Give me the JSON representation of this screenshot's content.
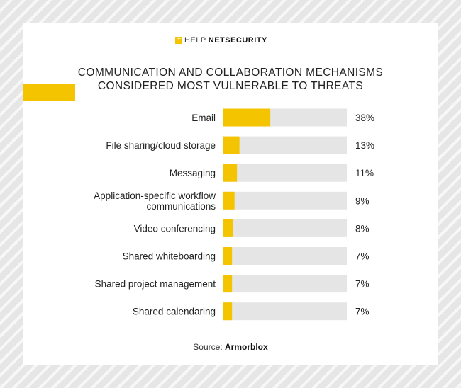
{
  "brand": {
    "help": "HELP",
    "net_security": "NETSECURITY"
  },
  "colors": {
    "bar": "#f5c400",
    "track": "#e5e5e5",
    "accent": "#f5c400"
  },
  "source": {
    "prefix": "Source:",
    "name": "Armorblox"
  },
  "chart_data": {
    "type": "bar",
    "orientation": "horizontal",
    "title_lines": [
      "COMMUNICATION AND COLLABORATION MECHANISMS",
      "CONSIDERED MOST VULNERABLE TO THREATS"
    ],
    "categories": [
      [
        "Email"
      ],
      [
        "File sharing/cloud storage"
      ],
      [
        "Messaging"
      ],
      [
        "Application-specific workflow",
        "communications"
      ],
      [
        "Video conferencing"
      ],
      [
        "Shared whiteboarding"
      ],
      [
        "Shared project management"
      ],
      [
        "Shared calendaring"
      ]
    ],
    "values": [
      38,
      13,
      11,
      9,
      8,
      7,
      7,
      7
    ],
    "value_labels": [
      "38%",
      "13%",
      "11%",
      "9%",
      "8%",
      "7%",
      "7%",
      "7%"
    ],
    "unit": "%",
    "xlim": [
      0,
      100
    ],
    "grid": false,
    "legend": "none"
  }
}
